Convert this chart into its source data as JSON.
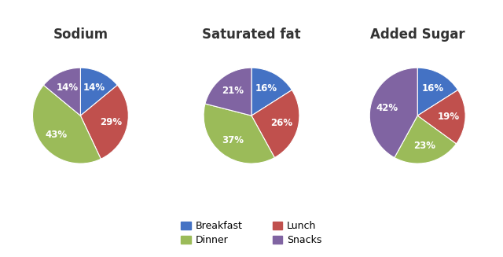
{
  "charts": [
    {
      "title": "Sodium",
      "values": [
        14,
        29,
        43,
        14
      ],
      "labels": [
        "Breakfast",
        "Lunch",
        "Dinner",
        "Snacks"
      ]
    },
    {
      "title": "Saturated fat",
      "values": [
        16,
        26,
        37,
        21
      ],
      "labels": [
        "Breakfast",
        "Lunch",
        "Dinner",
        "Snacks"
      ]
    },
    {
      "title": "Added Sugar",
      "values": [
        16,
        19,
        23,
        42
      ],
      "labels": [
        "Breakfast",
        "Lunch",
        "Dinner",
        "Snacks"
      ]
    }
  ],
  "colors": {
    "Breakfast": "#4472C4",
    "Lunch": "#C0504D",
    "Dinner": "#9BBB59",
    "Snacks": "#8064A2"
  },
  "legend_order": [
    "Breakfast",
    "Dinner",
    "Lunch",
    "Snacks"
  ],
  "background_color": "#FFFFFF",
  "label_fontsize": 8.5,
  "title_fontsize": 12
}
